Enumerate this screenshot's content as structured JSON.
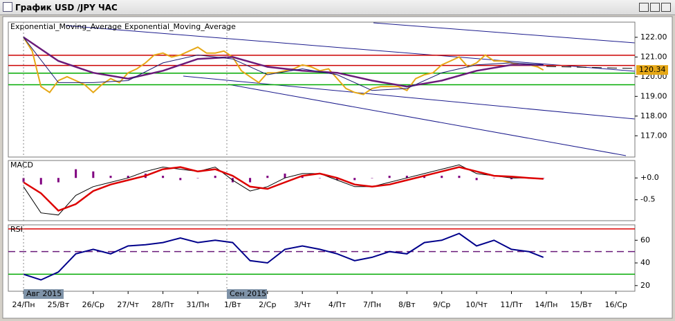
{
  "window": {
    "title": "График USD /JPY ЧАС"
  },
  "chart_data": [
    {
      "type": "line",
      "xlim": [
        -10.5,
        421
      ],
      "ylim": [
        115.92,
        122.77
      ],
      "yticks": [
        {
          "value": 117,
          "label": "117.00"
        },
        {
          "value": 118,
          "label": "118.00"
        },
        {
          "value": 119,
          "label": "119.00"
        },
        {
          "value": 120,
          "label": "120.00"
        },
        {
          "value": 121,
          "label": "121.00"
        },
        {
          "value": 122,
          "label": "122.00"
        }
      ],
      "levels": [
        {
          "value": 121.09,
          "color": "#cc0000"
        },
        {
          "value": 120.57,
          "color": "#cc0000"
        },
        {
          "value": 120.18,
          "color": "#00aa00"
        },
        {
          "value": 119.59,
          "color": "#00aa00"
        }
      ],
      "series": [
        {
          "color": "#e6a817",
          "width": 2,
          "x": [
            0,
            6,
            12,
            18,
            24,
            30,
            36,
            42,
            48,
            54,
            60,
            66,
            72,
            78,
            84,
            90,
            96,
            102,
            108,
            114,
            120,
            126,
            132,
            138,
            144,
            150,
            156,
            162,
            168,
            174,
            180,
            186,
            192,
            198,
            204,
            210,
            216,
            222,
            228,
            234,
            240,
            246,
            252,
            258,
            264,
            270,
            276,
            282,
            288,
            294,
            300,
            306,
            312,
            318,
            324,
            330,
            336,
            342,
            348,
            354,
            358
          ],
          "values": [
            122.0,
            121.3,
            119.5,
            119.2,
            119.8,
            120.0,
            119.8,
            119.6,
            119.2,
            119.6,
            119.9,
            119.7,
            120.2,
            120.4,
            120.7,
            121.1,
            121.2,
            121.0,
            121.1,
            121.3,
            121.5,
            121.2,
            121.2,
            121.3,
            121.0,
            120.3,
            120.0,
            119.7,
            120.2,
            120.2,
            120.3,
            120.4,
            120.6,
            120.5,
            120.3,
            120.4,
            119.9,
            119.4,
            119.2,
            119.1,
            119.4,
            119.5,
            119.5,
            119.5,
            119.3,
            119.9,
            120.1,
            120.2,
            120.6,
            120.8,
            121.0,
            120.5,
            120.7,
            121.1,
            120.8,
            120.8,
            120.7,
            120.6,
            120.6,
            120.5,
            120.34
          ]
        },
        {
          "name": "Exponential_Moving_Average",
          "color": "#6a1b7a",
          "width": 2.5,
          "x": [
            0,
            24,
            48,
            72,
            96,
            120,
            144,
            168,
            192,
            216,
            240,
            264,
            288,
            312,
            336,
            358
          ],
          "values": [
            122.0,
            120.8,
            120.2,
            119.9,
            120.3,
            120.9,
            121.0,
            120.5,
            120.3,
            120.2,
            119.8,
            119.5,
            119.8,
            120.3,
            120.6,
            120.6
          ]
        },
        {
          "name": "Exponential_Moving_Average",
          "color": "#1a1a70",
          "width": 1,
          "x": [
            0,
            24,
            48,
            72,
            96,
            120,
            144,
            168,
            192,
            216,
            240,
            264,
            288,
            312,
            336,
            358
          ],
          "values": [
            122.0,
            119.7,
            119.7,
            119.8,
            120.7,
            121.1,
            120.9,
            120.1,
            120.4,
            120.1,
            119.3,
            119.4,
            120.2,
            120.6,
            120.7,
            120.6
          ]
        }
      ]
    },
    {
      "type": "line",
      "title": "MACD",
      "xlim": [
        -10.5,
        421
      ],
      "ylim": [
        -0.98,
        0.4
      ],
      "yticks": [
        {
          "value": -0.5,
          "label": "-0.5"
        },
        {
          "value": 0,
          "label": "+0.0"
        }
      ],
      "series": [
        {
          "type": "bar",
          "color": "#800080",
          "x": [
            0,
            12,
            24,
            36,
            48,
            60,
            72,
            84,
            96,
            108,
            120,
            132,
            144,
            156,
            168,
            180,
            192,
            204,
            216,
            228,
            240,
            252,
            264,
            276,
            288,
            300,
            312,
            324,
            336,
            348,
            358
          ],
          "values": [
            -0.1,
            -0.15,
            -0.1,
            0.2,
            0.15,
            0.05,
            0.05,
            0.1,
            0.05,
            -0.05,
            0.0,
            0.05,
            -0.1,
            -0.1,
            0.05,
            0.1,
            0.05,
            0.0,
            -0.05,
            -0.05,
            0.0,
            0.05,
            0.05,
            0.05,
            0.05,
            0.05,
            -0.05,
            0.0,
            -0.03,
            -0.02,
            -0.01
          ]
        },
        {
          "color": "#000000",
          "width": 1,
          "x": [
            0,
            12,
            24,
            36,
            48,
            60,
            72,
            84,
            96,
            108,
            120,
            132,
            144,
            156,
            168,
            180,
            192,
            204,
            216,
            228,
            240,
            252,
            264,
            276,
            288,
            300,
            312,
            324,
            336,
            348,
            358
          ],
          "values": [
            -0.2,
            -0.8,
            -0.85,
            -0.4,
            -0.2,
            -0.1,
            0.0,
            0.15,
            0.25,
            0.2,
            0.15,
            0.25,
            -0.05,
            -0.3,
            -0.2,
            0.0,
            0.1,
            0.1,
            -0.05,
            -0.2,
            -0.2,
            -0.1,
            0.0,
            0.1,
            0.2,
            0.3,
            0.1,
            0.05,
            0.0,
            0.0,
            -0.03
          ]
        },
        {
          "color": "#dd0000",
          "width": 2.5,
          "x": [
            0,
            12,
            24,
            36,
            48,
            60,
            72,
            84,
            96,
            108,
            120,
            132,
            144,
            156,
            168,
            180,
            192,
            204,
            216,
            228,
            240,
            252,
            264,
            276,
            288,
            300,
            312,
            324,
            336,
            348,
            358
          ],
          "values": [
            -0.1,
            -0.35,
            -0.75,
            -0.6,
            -0.3,
            -0.15,
            -0.05,
            0.05,
            0.2,
            0.25,
            0.15,
            0.2,
            0.05,
            -0.2,
            -0.25,
            -0.1,
            0.05,
            0.1,
            0.0,
            -0.15,
            -0.2,
            -0.15,
            -0.05,
            0.05,
            0.15,
            0.25,
            0.15,
            0.05,
            0.03,
            0.0,
            -0.02
          ]
        }
      ]
    },
    {
      "type": "line",
      "title": "RSI",
      "xlim": [
        -10.5,
        421
      ],
      "ylim": [
        15,
        73.6
      ],
      "yticks": [
        20,
        40,
        60
      ],
      "levels": [
        {
          "value": 70,
          "color": "#dd0000"
        },
        {
          "value": 50,
          "color": "#6a1b7a",
          "dash": true
        },
        {
          "value": 30,
          "color": "#00aa00"
        }
      ],
      "series": [
        {
          "color": "#00008b",
          "width": 2,
          "x": [
            0,
            12,
            24,
            36,
            48,
            60,
            72,
            84,
            96,
            108,
            120,
            132,
            144,
            156,
            168,
            180,
            192,
            204,
            216,
            228,
            240,
            252,
            264,
            276,
            288,
            300,
            312,
            324,
            336,
            348,
            358
          ],
          "values": [
            30,
            25,
            32,
            48,
            52,
            48,
            55,
            56,
            58,
            62,
            58,
            60,
            58,
            42,
            40,
            52,
            55,
            52,
            48,
            42,
            45,
            50,
            48,
            58,
            60,
            66,
            55,
            60,
            52,
            50,
            45
          ]
        }
      ],
      "xticks": [
        {
          "value": 0,
          "label": "24/Пн"
        },
        {
          "value": 24,
          "label": "25/Вт"
        },
        {
          "value": 48,
          "label": "26/Ср"
        },
        {
          "value": 72,
          "label": "27/Чт"
        },
        {
          "value": 96,
          "label": "28/Пт"
        },
        {
          "value": 120,
          "label": "31/Пн"
        },
        {
          "value": 144,
          "label": "1/Вт"
        },
        {
          "value": 168,
          "label": "2/Ср"
        },
        {
          "value": 192,
          "label": "3/Чт"
        },
        {
          "value": 216,
          "label": "4/Пт"
        },
        {
          "value": 240,
          "label": "7/Пн"
        },
        {
          "value": 264,
          "label": "8/Вт"
        },
        {
          "value": 288,
          "label": "9/Ср"
        },
        {
          "value": 312,
          "label": "10/Чт"
        },
        {
          "value": 336,
          "label": "11/Пт"
        },
        {
          "value": 360,
          "label": "14/Пн"
        },
        {
          "value": 384,
          "label": "15/Вт"
        },
        {
          "value": 408,
          "label": "16/Ср"
        }
      ],
      "month_markers": [
        {
          "value": 0,
          "label": "Авг 2015"
        },
        {
          "value": 140,
          "label": "Сен 2015"
        }
      ]
    }
  ]
}
